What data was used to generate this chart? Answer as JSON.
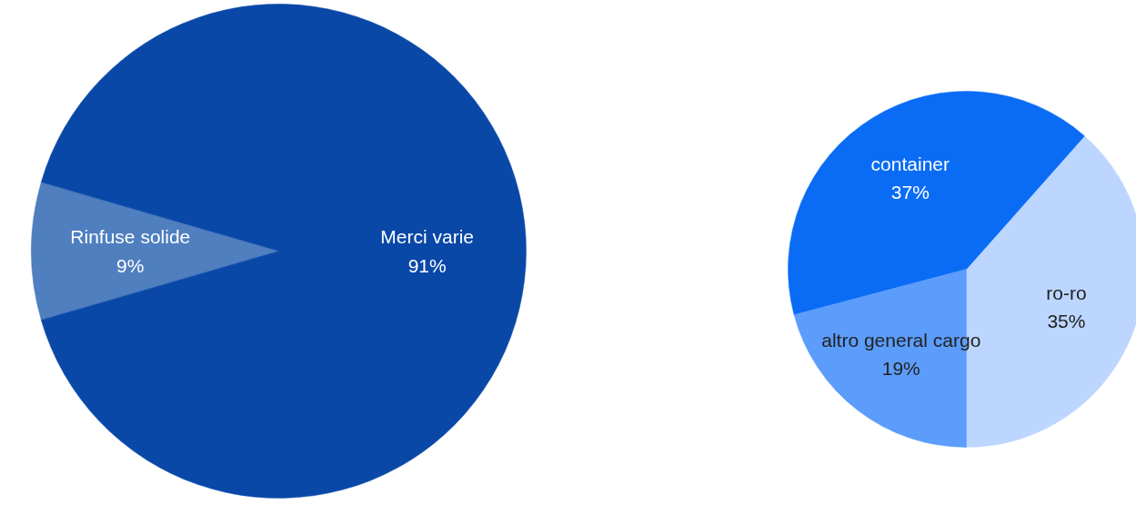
{
  "chart_data": [
    {
      "type": "pie",
      "categories": [
        "Rinfuse solide",
        "Merci varie"
      ],
      "values": [
        9,
        91
      ],
      "colors": [
        "#4f7fbf",
        "#0a48a8"
      ],
      "value_labels": [
        "9%",
        "91%"
      ]
    },
    {
      "type": "pie",
      "categories": [
        "ro-ro",
        "container",
        "altro general cargo"
      ],
      "values": [
        35,
        37,
        19
      ],
      "colors": [
        "#bcd6ff",
        "#0a6cf5",
        "#5c9cfa"
      ],
      "value_labels": [
        "35%",
        "37%",
        "19%"
      ]
    }
  ]
}
